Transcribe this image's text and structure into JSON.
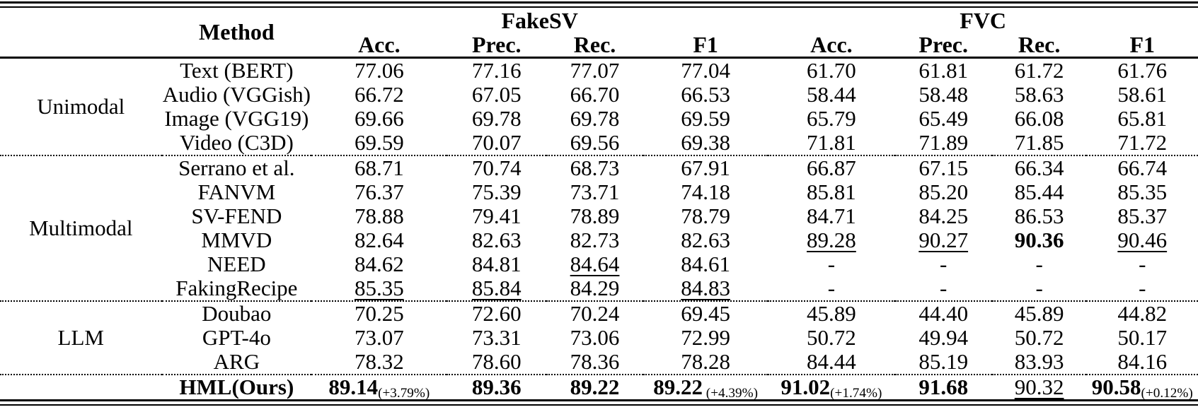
{
  "table": {
    "header": {
      "method_label": "Method",
      "datasets": [
        {
          "label": "FakeSV",
          "metrics": [
            "Acc.",
            "Prec.",
            "Rec.",
            "F1"
          ]
        },
        {
          "label": "FVC",
          "metrics": [
            "Acc.",
            "Prec.",
            "Rec.",
            "F1"
          ]
        }
      ]
    },
    "sections": [
      {
        "group": "Unimodal",
        "rows": [
          {
            "method": "Text (BERT)",
            "cells": [
              {
                "t": "77.06"
              },
              {
                "t": "77.16"
              },
              {
                "t": "77.07"
              },
              {
                "t": "77.04"
              },
              {
                "t": "61.70"
              },
              {
                "t": "61.81"
              },
              {
                "t": "61.72"
              },
              {
                "t": "61.76"
              }
            ]
          },
          {
            "method": "Audio (VGGish)",
            "cells": [
              {
                "t": "66.72"
              },
              {
                "t": "67.05"
              },
              {
                "t": "66.70"
              },
              {
                "t": "66.53"
              },
              {
                "t": "58.44"
              },
              {
                "t": "58.48"
              },
              {
                "t": "58.63"
              },
              {
                "t": "58.61"
              }
            ]
          },
          {
            "method": "Image (VGG19)",
            "cells": [
              {
                "t": "69.66"
              },
              {
                "t": "69.78"
              },
              {
                "t": "69.78"
              },
              {
                "t": "69.59"
              },
              {
                "t": "65.79"
              },
              {
                "t": "65.49"
              },
              {
                "t": "66.08"
              },
              {
                "t": "65.81"
              }
            ]
          },
          {
            "method": "Video (C3D)",
            "cells": [
              {
                "t": "69.59"
              },
              {
                "t": "70.07"
              },
              {
                "t": "69.56"
              },
              {
                "t": "69.38"
              },
              {
                "t": "71.81"
              },
              {
                "t": "71.89"
              },
              {
                "t": "71.85"
              },
              {
                "t": "71.72"
              }
            ]
          }
        ]
      },
      {
        "group": "Multimodal",
        "rows": [
          {
            "method": "Serrano et al.",
            "cells": [
              {
                "t": "68.71"
              },
              {
                "t": "70.74"
              },
              {
                "t": "68.73"
              },
              {
                "t": "67.91"
              },
              {
                "t": "66.87"
              },
              {
                "t": "67.15"
              },
              {
                "t": "66.34"
              },
              {
                "t": "66.74"
              }
            ]
          },
          {
            "method": "FANVM",
            "cells": [
              {
                "t": "76.37"
              },
              {
                "t": "75.39"
              },
              {
                "t": "73.71"
              },
              {
                "t": "74.18"
              },
              {
                "t": "85.81"
              },
              {
                "t": "85.20"
              },
              {
                "t": "85.44"
              },
              {
                "t": "85.35"
              }
            ]
          },
          {
            "method": "SV-FEND",
            "cells": [
              {
                "t": "78.88"
              },
              {
                "t": "79.41"
              },
              {
                "t": "78.89"
              },
              {
                "t": "78.79"
              },
              {
                "t": "84.71"
              },
              {
                "t": "84.25"
              },
              {
                "t": "86.53"
              },
              {
                "t": "85.37"
              }
            ]
          },
          {
            "method": "MMVD",
            "cells": [
              {
                "t": "82.64"
              },
              {
                "t": "82.63"
              },
              {
                "t": "82.73"
              },
              {
                "t": "82.63"
              },
              {
                "t": "89.28",
                "u": true
              },
              {
                "t": "90.27",
                "u": true
              },
              {
                "t": "90.36",
                "b": true
              },
              {
                "t": "90.46",
                "u": true
              }
            ]
          },
          {
            "method": "NEED",
            "cells": [
              {
                "t": "84.62"
              },
              {
                "t": "84.81"
              },
              {
                "t": "84.64",
                "u": true
              },
              {
                "t": "84.61"
              },
              {
                "t": "-"
              },
              {
                "t": "-"
              },
              {
                "t": "-"
              },
              {
                "t": "-"
              }
            ]
          },
          {
            "method": "FakingRecipe",
            "cells": [
              {
                "t": "85.35",
                "u": true
              },
              {
                "t": "85.84",
                "u": true
              },
              {
                "t": "84.29"
              },
              {
                "t": "84.83",
                "u": true
              },
              {
                "t": "-"
              },
              {
                "t": "-"
              },
              {
                "t": "-"
              },
              {
                "t": "-"
              }
            ]
          }
        ]
      },
      {
        "group": "LLM",
        "rows": [
          {
            "method": "Doubao",
            "cells": [
              {
                "t": "70.25"
              },
              {
                "t": "72.60"
              },
              {
                "t": "70.24"
              },
              {
                "t": "69.45"
              },
              {
                "t": "45.89"
              },
              {
                "t": "44.40"
              },
              {
                "t": "45.89"
              },
              {
                "t": "44.82"
              }
            ]
          },
          {
            "method": "GPT-4o",
            "cells": [
              {
                "t": "73.07"
              },
              {
                "t": "73.31"
              },
              {
                "t": "73.06"
              },
              {
                "t": "72.99"
              },
              {
                "t": "50.72"
              },
              {
                "t": "49.94"
              },
              {
                "t": "50.72"
              },
              {
                "t": "50.17"
              }
            ]
          },
          {
            "method": "ARG",
            "cells": [
              {
                "t": "78.32"
              },
              {
                "t": "78.60"
              },
              {
                "t": "78.36"
              },
              {
                "t": "78.28"
              },
              {
                "t": "84.44"
              },
              {
                "t": "85.19"
              },
              {
                "t": "83.93"
              },
              {
                "t": "84.16"
              }
            ]
          }
        ]
      },
      {
        "group": "",
        "rows": [
          {
            "method": "HML(Ours)",
            "method_bold": true,
            "cells": [
              {
                "t": "89.14",
                "b": true,
                "sub": "(+3.79%)"
              },
              {
                "t": "89.36",
                "b": true
              },
              {
                "t": "89.22",
                "b": true
              },
              {
                "t": "89.22",
                "b": true,
                "sub": " (+4.39%)"
              },
              {
                "t": "91.02",
                "b": true,
                "sub": "(+1.74%)"
              },
              {
                "t": "91.68",
                "b": true
              },
              {
                "t": "90.32",
                "u": true
              },
              {
                "t": "90.58",
                "b": true,
                "sub": "(+0.12%)"
              }
            ]
          }
        ]
      }
    ]
  },
  "colors": {
    "text": "#000000",
    "background": "#ffffff",
    "rule": "#000000"
  }
}
